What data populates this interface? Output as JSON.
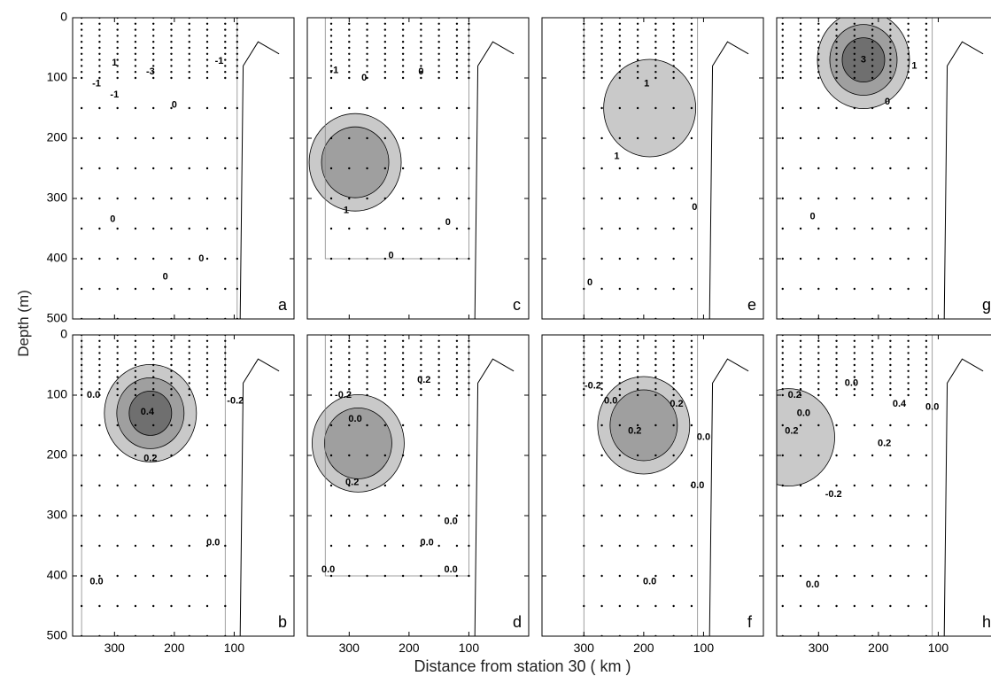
{
  "figure": {
    "ylabel": "Depth (m)",
    "xlabel": "Distance from station 30  ( km )"
  },
  "chart_data": {
    "type": "contour",
    "layout": {
      "rows": 2,
      "cols": 4
    },
    "xlim": [
      370,
      0
    ],
    "ylim": [
      500,
      0
    ],
    "y_axis_reversed": true,
    "y_ticks": [
      0,
      100,
      200,
      300,
      400,
      500
    ],
    "x_ticks": [
      300,
      200,
      100
    ],
    "ylabel": "Depth (m)",
    "xlabel": "Distance from station 30  ( km )",
    "grid": false,
    "panels": [
      {
        "id": "a",
        "row": 0,
        "col": 0,
        "x_tick_labels": false,
        "y_tick_labels": true,
        "station_x": [
          355,
          325,
          295,
          265,
          235,
          205,
          175,
          145,
          115,
          95
        ],
        "data_extent": {
          "x": [
            370,
            95
          ],
          "y": [
            0,
            500
          ]
        },
        "contour_labels": [
          {
            "text": "0",
            "x": 200,
            "y": 145
          },
          {
            "text": "0",
            "x": 303,
            "y": 335
          },
          {
            "text": "0",
            "x": 215,
            "y": 430
          },
          {
            "text": "0",
            "x": 155,
            "y": 400
          },
          {
            "text": "1",
            "x": 300,
            "y": 75
          },
          {
            "text": "-1",
            "x": 330,
            "y": 110
          },
          {
            "text": "-1",
            "x": 300,
            "y": 128
          },
          {
            "text": "-3",
            "x": 240,
            "y": 90
          },
          {
            "text": "-1",
            "x": 125,
            "y": 72
          }
        ],
        "shaded": []
      },
      {
        "id": "b",
        "row": 1,
        "col": 0,
        "x_tick_labels": true,
        "y_tick_labels": true,
        "station_x": [
          355,
          325,
          295,
          265,
          235,
          205,
          175,
          145,
          115,
          95
        ],
        "data_extent": {
          "x": [
            355,
            115
          ],
          "y": [
            0,
            500
          ]
        },
        "contour_labels": [
          {
            "text": "0.0",
            "x": 335,
            "y": 100
          },
          {
            "text": "-0.2",
            "x": 98,
            "y": 110
          },
          {
            "text": "0.4",
            "x": 245,
            "y": 128
          },
          {
            "text": "0.2",
            "x": 240,
            "y": 205
          },
          {
            "text": "0.0",
            "x": 135,
            "y": 345
          },
          {
            "text": "0.0",
            "x": 330,
            "y": 410
          }
        ],
        "shaded": [
          {
            "level": 0.2,
            "shade": "light"
          },
          {
            "level": 0.4,
            "shade": "medium"
          },
          {
            "level": 0.6,
            "shade": "dark"
          }
        ]
      },
      {
        "id": "c",
        "row": 0,
        "col": 1,
        "x_tick_labels": false,
        "y_tick_labels": false,
        "station_x": [
          330,
          300,
          270,
          240,
          210,
          180,
          150,
          120,
          100
        ],
        "data_extent": {
          "x": [
            340,
            100
          ],
          "y": [
            0,
            400
          ]
        },
        "contour_labels": [
          {
            "text": "-1",
            "x": 325,
            "y": 88
          },
          {
            "text": "0",
            "x": 275,
            "y": 100
          },
          {
            "text": "0",
            "x": 180,
            "y": 90
          },
          {
            "text": "1",
            "x": 305,
            "y": 320
          },
          {
            "text": "0",
            "x": 230,
            "y": 395
          },
          {
            "text": "0",
            "x": 135,
            "y": 340
          }
        ],
        "shaded": [
          {
            "level": 1,
            "shade": "light"
          },
          {
            "level": 2,
            "shade": "medium"
          }
        ]
      },
      {
        "id": "d",
        "row": 1,
        "col": 1,
        "x_tick_labels": true,
        "y_tick_labels": false,
        "station_x": [
          330,
          300,
          270,
          240,
          210,
          180,
          150,
          120,
          100
        ],
        "data_extent": {
          "x": [
            340,
            100
          ],
          "y": [
            0,
            400
          ]
        },
        "contour_labels": [
          {
            "text": "-0.2",
            "x": 310,
            "y": 100
          },
          {
            "text": "0.2",
            "x": 175,
            "y": 75
          },
          {
            "text": "0.0",
            "x": 290,
            "y": 140
          },
          {
            "text": "0.2",
            "x": 295,
            "y": 245
          },
          {
            "text": "0.0",
            "x": 170,
            "y": 345
          },
          {
            "text": "0.0",
            "x": 130,
            "y": 310
          },
          {
            "text": "0.0",
            "x": 335,
            "y": 390
          },
          {
            "text": "0.0",
            "x": 130,
            "y": 390
          }
        ],
        "shaded": [
          {
            "level": 0.2,
            "shade": "light"
          },
          {
            "level": 0.4,
            "shade": "medium"
          }
        ]
      },
      {
        "id": "e",
        "row": 0,
        "col": 2,
        "x_tick_labels": false,
        "y_tick_labels": false,
        "station_x": [
          300,
          270,
          240,
          210,
          180,
          150,
          120
        ],
        "data_extent": {
          "x": [
            300,
            110
          ],
          "y": [
            0,
            500
          ]
        },
        "contour_labels": [
          {
            "text": "1",
            "x": 195,
            "y": 110
          },
          {
            "text": "1",
            "x": 245,
            "y": 230
          },
          {
            "text": "0",
            "x": 115,
            "y": 315
          },
          {
            "text": "0",
            "x": 290,
            "y": 440
          }
        ],
        "shaded": [
          {
            "level": 1,
            "shade": "light"
          }
        ]
      },
      {
        "id": "f",
        "row": 1,
        "col": 2,
        "x_tick_labels": true,
        "y_tick_labels": false,
        "station_x": [
          300,
          270,
          240,
          210,
          180,
          150,
          120
        ],
        "data_extent": {
          "x": [
            300,
            110
          ],
          "y": [
            0,
            500
          ]
        },
        "contour_labels": [
          {
            "text": "-0.2",
            "x": 285,
            "y": 85
          },
          {
            "text": "0.0",
            "x": 255,
            "y": 110
          },
          {
            "text": "0.2",
            "x": 215,
            "y": 160
          },
          {
            "text": "0.2",
            "x": 145,
            "y": 115
          },
          {
            "text": "0.0",
            "x": 100,
            "y": 170
          },
          {
            "text": "0.0",
            "x": 110,
            "y": 250
          },
          {
            "text": "0.0",
            "x": 190,
            "y": 410
          }
        ],
        "shaded": [
          {
            "level": 0.2,
            "shade": "light"
          },
          {
            "level": 0.4,
            "shade": "medium"
          }
        ]
      },
      {
        "id": "g",
        "row": 0,
        "col": 3,
        "x_tick_labels": false,
        "y_tick_labels": false,
        "station_x": [
          360,
          330,
          300,
          270,
          240,
          210,
          180,
          150,
          120
        ],
        "data_extent": {
          "x": [
            370,
            110
          ],
          "y": [
            0,
            500
          ]
        },
        "contour_labels": [
          {
            "text": "3",
            "x": 225,
            "y": 70
          },
          {
            "text": "1",
            "x": 140,
            "y": 80
          },
          {
            "text": "0",
            "x": 185,
            "y": 140
          },
          {
            "text": "0",
            "x": 310,
            "y": 330
          }
        ],
        "shaded": [
          {
            "level": 1,
            "shade": "light"
          },
          {
            "level": 2,
            "shade": "medium"
          },
          {
            "level": 3,
            "shade": "dark"
          }
        ]
      },
      {
        "id": "h",
        "row": 1,
        "col": 3,
        "x_tick_labels": true,
        "y_tick_labels": false,
        "station_x": [
          360,
          330,
          300,
          270,
          240,
          210,
          180,
          150,
          120
        ],
        "data_extent": {
          "x": [
            370,
            110
          ],
          "y": [
            0,
            500
          ]
        },
        "contour_labels": [
          {
            "text": "0.0",
            "x": 245,
            "y": 80
          },
          {
            "text": "0.2",
            "x": 340,
            "y": 100
          },
          {
            "text": "0.0",
            "x": 325,
            "y": 130
          },
          {
            "text": "0.2",
            "x": 345,
            "y": 160
          },
          {
            "text": "0.4",
            "x": 165,
            "y": 115
          },
          {
            "text": "0.2",
            "x": 190,
            "y": 180
          },
          {
            "text": "-0.2",
            "x": 275,
            "y": 265
          },
          {
            "text": "0.0",
            "x": 110,
            "y": 120
          },
          {
            "text": "0.0",
            "x": 310,
            "y": 415
          }
        ],
        "shaded": [
          {
            "level": 0.2,
            "shade": "light"
          }
        ]
      }
    ]
  }
}
